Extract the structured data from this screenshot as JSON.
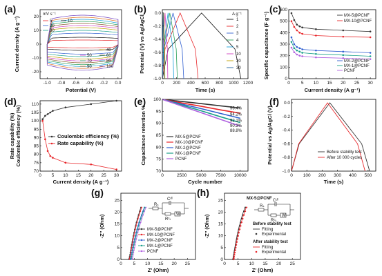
{
  "panels": {
    "a": {
      "label": "(a)",
      "xlabel": "Potential (V)",
      "ylabel": "Current density (A g⁻¹)",
      "xticks": [
        "-1.0",
        "-0.8",
        "-0.6",
        "-0.4",
        "-0.2",
        "0.0"
      ],
      "yticks": [
        "-20",
        "-10",
        "0",
        "10",
        "20"
      ],
      "legend_title": "mV s⁻¹",
      "legend_left": [
        "5",
        "20",
        "30"
      ],
      "legend_left2": [
        "10"
      ],
      "legend_right": [
        "40",
        "50",
        "60",
        "70",
        "80",
        "90",
        "100"
      ]
    },
    "b": {
      "label": "(b)",
      "xlabel": "Time (s)",
      "ylabel": "Potential (V) vs Ag/AgCl",
      "xticks": [
        "0",
        "200",
        "400",
        "600",
        "800",
        "1000",
        "1200"
      ],
      "yticks": [
        "-1.0",
        "-0.8",
        "-0.6",
        "-0.4",
        "-0.2",
        "0.0"
      ],
      "legend_title": "A g⁻¹",
      "legend": [
        "1",
        "2",
        "3",
        "4",
        "5",
        "10",
        "20",
        "30"
      ]
    },
    "c": {
      "label": "(c)",
      "xlabel": "Current density (A g⁻¹)",
      "ylabel": "Specific capacitance (F g⁻¹)",
      "xticks": [
        "0",
        "5",
        "10",
        "15",
        "20",
        "25",
        "30"
      ],
      "yticks": [
        "0",
        "100",
        "200",
        "300",
        "400",
        "500",
        "600"
      ],
      "legend_top": [
        "MX-5@PCNF",
        "MX-10@PCNF"
      ],
      "legend_bottom": [
        "MX-2@PCNF",
        "MX-1@PCNF",
        "PCNF"
      ]
    },
    "d": {
      "label": "(d)",
      "xlabel": "Current density (A g⁻¹)",
      "ylabel1": "Rate capability (%)",
      "ylabel2": "Coulombic efficiency (%)",
      "xticks": [
        "0",
        "5",
        "10",
        "15",
        "20",
        "25",
        "30"
      ],
      "yticks": [
        "70",
        "75",
        "80",
        "85",
        "90",
        "95",
        "100",
        "105",
        "110"
      ],
      "legend": [
        "Coulombic efficiency (%)",
        "Rate capability (%)"
      ]
    },
    "e": {
      "label": "(e)",
      "xlabel": "Cycle number",
      "ylabel": "Capacitance retention %",
      "xticks": [
        "0",
        "2500",
        "5000",
        "7500",
        "10000"
      ],
      "yticks": [
        "70",
        "75",
        "80",
        "85",
        "90",
        "95",
        "100"
      ],
      "end_labels": [
        "96.4%",
        "94.2%",
        "92.1%",
        "90.3%",
        "88.8%"
      ],
      "legend": [
        "MX-5@PCNF",
        "MX-10@PCNF",
        "MX-2@PCNF",
        "MX-1@PCNF",
        "PCNF"
      ]
    },
    "f": {
      "label": "(f)",
      "xlabel": "Time (s)",
      "ylabel": "Potential vs Ag/AgCl (V)",
      "xticks": [
        "0",
        "100",
        "200",
        "300",
        "400",
        "500"
      ],
      "yticks": [
        "-1.0",
        "-0.8",
        "-0.6",
        "-0.4",
        "-0.2",
        "0.0"
      ],
      "legend": [
        "Before stability test",
        "After 10 000 cycles"
      ]
    },
    "g": {
      "label": "(g)",
      "xlabel": "Z' (Ohm)",
      "ylabel": "-Z'' (Ohm)",
      "xticks": [
        "0",
        "5",
        "10",
        "15",
        "20",
        "25"
      ],
      "yticks": [
        "0",
        "5",
        "10",
        "15",
        "20",
        "25"
      ],
      "legend": [
        "MX-5@PCNF",
        "MX-10@PCNF",
        "MX-2@PCNF",
        "MX-1@PCNF",
        "PCNF"
      ],
      "circuit": {
        "rs": "Rₛ",
        "rct": "Rᶜₜ",
        "cdl": "Cᵈˡ",
        "w": "W"
      }
    },
    "h": {
      "label": "(h)",
      "xlabel": "Z' (Ohm)",
      "ylabel": "-Z'' (Ohm)",
      "xticks": [
        "0",
        "5",
        "10",
        "15",
        "20",
        "25"
      ],
      "yticks": [
        "0",
        "5",
        "10",
        "15",
        "20",
        "25"
      ],
      "title": "MX-5@PCNF",
      "before_title": "Before stability test",
      "after_title": "After stability test",
      "legend_fit": "Fitting",
      "legend_exp": "Experimental",
      "circuit": {
        "rs": "Rₛ",
        "rct": "Rᶜₜ",
        "cdl": "Cᵈˡ",
        "w": "W"
      }
    }
  },
  "colors": {
    "mx5": "#333333",
    "mx10": "#e8262a",
    "mx2": "#2f5fd0",
    "mx1": "#1aa08a",
    "pcnf": "#b061e0",
    "gcd": [
      "#111111",
      "#e8262a",
      "#2f5fd0",
      "#2aa05a",
      "#1a9fd8",
      "#d040c0",
      "#c0a000",
      "#2060a0"
    ]
  },
  "chart_data": [
    {
      "panel": "a",
      "type": "line",
      "scan_rates": [
        5,
        10,
        20,
        30,
        40,
        50,
        60,
        70,
        80,
        90,
        100
      ],
      "xlim": [
        -1.1,
        0.05
      ],
      "ylim": [
        -25,
        25
      ],
      "peak_current": [
        3,
        5,
        8,
        10,
        12,
        13.5,
        15,
        16.5,
        18,
        19.5,
        21
      ]
    },
    {
      "panel": "b",
      "type": "line",
      "current_densities": [
        1,
        2,
        3,
        4,
        5,
        10,
        20,
        30
      ],
      "charge_time": [
        550,
        250,
        150,
        105,
        80,
        38,
        18,
        12
      ],
      "discharge_time": [
        550,
        250,
        150,
        105,
        80,
        38,
        18,
        12
      ],
      "xlim": [
        0,
        1200
      ],
      "ylim": [
        -1.0,
        0.05
      ]
    },
    {
      "panel": "c",
      "type": "line",
      "x": [
        1,
        2,
        3,
        4,
        5,
        10,
        20,
        30
      ],
      "series": [
        {
          "name": "MX-5@PCNF",
          "values": [
            570,
            510,
            470,
            455,
            445,
            430,
            420,
            410
          ]
        },
        {
          "name": "MX-10@PCNF",
          "values": [
            500,
            450,
            420,
            400,
            390,
            375,
            365,
            360
          ]
        },
        {
          "name": "MX-2@PCNF",
          "values": [
            360,
            300,
            275,
            265,
            255,
            245,
            235,
            225
          ]
        },
        {
          "name": "MX-1@PCNF",
          "values": [
            320,
            265,
            245,
            235,
            225,
            215,
            205,
            195
          ]
        },
        {
          "name": "PCNF",
          "values": [
            270,
            230,
            210,
            200,
            195,
            185,
            178,
            170
          ]
        }
      ],
      "xlim": [
        0,
        32
      ],
      "ylim": [
        0,
        600
      ]
    },
    {
      "panel": "d",
      "type": "line",
      "x": [
        1,
        2,
        3,
        4,
        5,
        10,
        20,
        30
      ],
      "series": [
        {
          "name": "Coulombic efficiency (%)",
          "values": [
            101,
            103,
            104,
            105,
            106,
            108,
            110,
            112
          ]
        },
        {
          "name": "Rate capability (%)",
          "values": [
            100,
            89,
            82,
            79,
            78,
            75,
            74,
            71
          ]
        }
      ],
      "xlim": [
        0,
        32
      ],
      "ylim": [
        70,
        112
      ]
    },
    {
      "panel": "e",
      "type": "line",
      "x": [
        0,
        2500,
        5000,
        7500,
        10000
      ],
      "series": [
        {
          "name": "MX-5@PCNF",
          "values": [
            100,
            99.1,
            98.2,
            97.3,
            96.4
          ]
        },
        {
          "name": "MX-10@PCNF",
          "values": [
            100,
            98.5,
            97.1,
            95.6,
            94.2
          ]
        },
        {
          "name": "MX-2@PCNF",
          "values": [
            100,
            98.0,
            96.1,
            94.1,
            92.1
          ]
        },
        {
          "name": "MX-1@PCNF",
          "values": [
            100,
            97.6,
            95.2,
            92.7,
            90.3
          ]
        },
        {
          "name": "PCNF",
          "values": [
            100,
            97.2,
            94.4,
            91.6,
            88.8
          ]
        }
      ],
      "xlim": [
        0,
        11000
      ],
      "ylim": [
        70,
        100
      ]
    },
    {
      "panel": "f",
      "type": "line",
      "series": [
        {
          "name": "Before stability test",
          "charge_end": 250,
          "discharge_end": 510
        },
        {
          "name": "After 10 000 cycles",
          "charge_end": 235,
          "discharge_end": 480
        }
      ],
      "xlim": [
        0,
        550
      ],
      "ylim": [
        -1.0,
        0.05
      ]
    },
    {
      "panel": "g",
      "type": "scatter",
      "series": [
        {
          "name": "MX-5@PCNF",
          "rs": 3.0,
          "x_at_top": 7.5
        },
        {
          "name": "MX-10@PCNF",
          "rs": 3.2,
          "x_at_top": 7.8
        },
        {
          "name": "MX-2@PCNF",
          "rs": 3.5,
          "x_at_top": 8.8
        },
        {
          "name": "MX-1@PCNF",
          "rs": 3.8,
          "x_at_top": 9.0
        },
        {
          "name": "PCNF",
          "rs": 4.2,
          "x_at_top": 9.4
        }
      ],
      "xlim": [
        0,
        28
      ],
      "ylim": [
        0,
        28
      ]
    },
    {
      "panel": "h",
      "type": "scatter",
      "series": [
        {
          "name": "Before stability test",
          "rs": 3.0,
          "x_at_top": 7.5
        },
        {
          "name": "After stability test",
          "rs": 3.2,
          "x_at_top": 8.0
        }
      ],
      "xlim": [
        0,
        28
      ],
      "ylim": [
        0,
        28
      ]
    }
  ]
}
